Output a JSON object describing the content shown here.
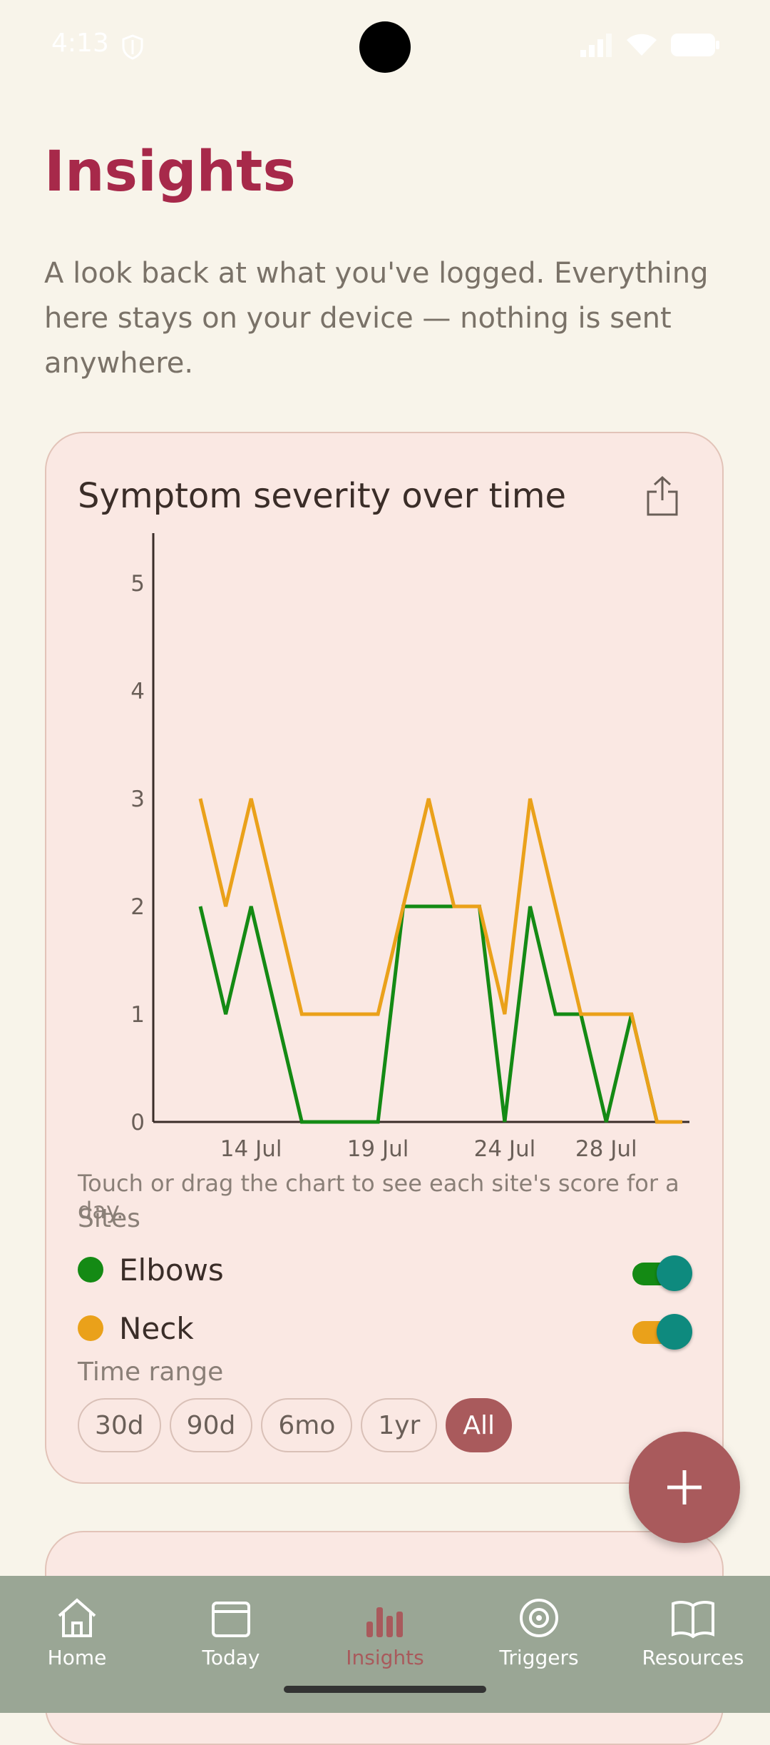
{
  "status_bar": {
    "time": "4:13"
  },
  "page": {
    "title": "Insights",
    "description": "A look back at what you've logged. Everything here stays on your device — nothing is sent anywhere."
  },
  "card": {
    "title": "Symptom severity over time",
    "hint": "Touch or drag the chart to see each site's score for a day.",
    "sites_label": "Sites",
    "sites": [
      {
        "name": "Elbows",
        "color": "#148a14",
        "enabled": true
      },
      {
        "name": "Neck",
        "color": "#eaa11a",
        "enabled": true
      }
    ],
    "time_range_label": "Time range",
    "ranges": [
      "30d",
      "90d",
      "6mo",
      "1yr",
      "All"
    ],
    "selected_range": "All"
  },
  "chart_data": {
    "type": "line",
    "title": "Symptom severity over time",
    "x": [
      "2024-07-12",
      "2024-07-13",
      "2024-07-14",
      "2024-07-15",
      "2024-07-16",
      "2024-07-17",
      "2024-07-18",
      "2024-07-19",
      "2024-07-20",
      "2024-07-21",
      "2024-07-22",
      "2024-07-23",
      "2024-07-24",
      "2024-07-25",
      "2024-07-26",
      "2024-07-27",
      "2024-07-28",
      "2024-07-29",
      "2024-07-30",
      "2024-07-31"
    ],
    "x_tick_labels": [
      {
        "x": "2024-07-14",
        "label": "14 Jul"
      },
      {
        "x": "2024-07-19",
        "label": "19 Jul"
      },
      {
        "x": "2024-07-24",
        "label": "24 Jul"
      },
      {
        "x": "2024-07-28",
        "label": "28 Jul"
      }
    ],
    "y_ticks": [
      "0",
      "1",
      "2",
      "3",
      "4",
      "5"
    ],
    "ylim": [
      0,
      5
    ],
    "series": [
      {
        "name": "Elbows",
        "color": "#148a14",
        "values": [
          2,
          1,
          2,
          1,
          0,
          0,
          0,
          0,
          2,
          2,
          2,
          2,
          0,
          2,
          1,
          1,
          0,
          1,
          0,
          0
        ]
      },
      {
        "name": "Neck",
        "color": "#eaa11a",
        "values": [
          3,
          2,
          3,
          2,
          1,
          1,
          1,
          1,
          2,
          3,
          2,
          2,
          1,
          3,
          2,
          1,
          1,
          1,
          0,
          0
        ]
      }
    ],
    "legend": "bottom",
    "grid": false
  },
  "nav": {
    "items": [
      {
        "label": "Home",
        "icon": "home-icon"
      },
      {
        "label": "Today",
        "icon": "calendar-icon"
      },
      {
        "label": "Insights",
        "icon": "bar-chart-icon"
      },
      {
        "label": "Triggers",
        "icon": "target-icon"
      },
      {
        "label": "Resources",
        "icon": "book-icon"
      }
    ],
    "active": "Insights"
  }
}
